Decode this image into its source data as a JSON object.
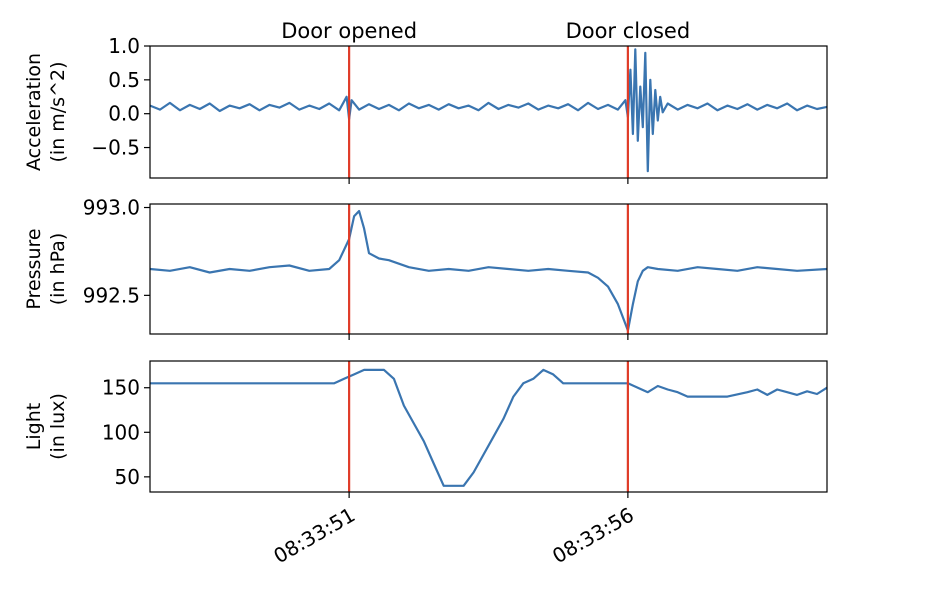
{
  "colors": {
    "series": "#3a75b0",
    "event_line": "#e03c28",
    "axes": "#000000",
    "background": "#ffffff"
  },
  "chart_data": {
    "type": "line",
    "shared_x": true,
    "x_unit": "seconds",
    "x_range": [
      -4,
      9.6
    ],
    "x_ticks": [
      {
        "value": 0,
        "label": "08:33:51"
      },
      {
        "value": 5.6,
        "label": "08:33:56"
      }
    ],
    "events": [
      {
        "x": 0,
        "label": "Door opened"
      },
      {
        "x": 5.6,
        "label": "Door closed"
      }
    ],
    "panels": [
      {
        "ylabel_line1": "Acceleration",
        "ylabel_line2": "(in m/s^2)",
        "ylim": [
          -0.95,
          1.0
        ],
        "yticks": [
          {
            "value": 1.0,
            "label": "1.0"
          },
          {
            "value": 0.5,
            "label": "0.5"
          },
          {
            "value": 0.0,
            "label": "0.0"
          },
          {
            "value": -0.5,
            "label": "−0.5"
          }
        ],
        "series": [
          {
            "x": [
              -4.0,
              -3.8,
              -3.6,
              -3.4,
              -3.2,
              -3.0,
              -2.8,
              -2.6,
              -2.4,
              -2.2,
              -2.0,
              -1.8,
              -1.6,
              -1.4,
              -1.2,
              -1.0,
              -0.8,
              -0.6,
              -0.4,
              -0.2,
              -0.05,
              0.0,
              0.05,
              0.2,
              0.4,
              0.6,
              0.8,
              1.0,
              1.2,
              1.4,
              1.6,
              1.8,
              2.0,
              2.2,
              2.4,
              2.6,
              2.8,
              3.0,
              3.2,
              3.4,
              3.6,
              3.8,
              4.0,
              4.2,
              4.4,
              4.6,
              4.8,
              5.0,
              5.2,
              5.4,
              5.55,
              5.6,
              5.65,
              5.7,
              5.75,
              5.8,
              5.85,
              5.9,
              5.95,
              6.0,
              6.05,
              6.1,
              6.15,
              6.2,
              6.25,
              6.3,
              6.4,
              6.6,
              6.8,
              7.0,
              7.2,
              7.4,
              7.6,
              7.8,
              8.0,
              8.2,
              8.4,
              8.6,
              8.8,
              9.0,
              9.2,
              9.4,
              9.6
            ],
            "values": [
              0.12,
              0.06,
              0.16,
              0.05,
              0.13,
              0.07,
              0.15,
              0.04,
              0.12,
              0.08,
              0.14,
              0.05,
              0.13,
              0.09,
              0.16,
              0.06,
              0.12,
              0.07,
              0.15,
              0.05,
              0.25,
              -0.08,
              0.2,
              0.06,
              0.14,
              0.07,
              0.13,
              0.05,
              0.15,
              0.08,
              0.13,
              0.06,
              0.14,
              0.08,
              0.12,
              0.05,
              0.16,
              0.07,
              0.13,
              0.09,
              0.15,
              0.06,
              0.12,
              0.08,
              0.14,
              0.05,
              0.16,
              0.07,
              0.13,
              0.06,
              0.2,
              -0.05,
              0.65,
              -0.3,
              0.95,
              -0.4,
              0.4,
              -0.2,
              0.9,
              -0.85,
              0.5,
              -0.3,
              0.35,
              -0.1,
              0.25,
              0.02,
              0.15,
              0.06,
              0.13,
              0.08,
              0.15,
              0.05,
              0.12,
              0.07,
              0.14,
              0.06,
              0.13,
              0.08,
              0.15,
              0.05,
              0.12,
              0.07,
              0.1
            ]
          }
        ]
      },
      {
        "ylabel_line1": "Pressure",
        "ylabel_line2": "(in hPa)",
        "ylim": [
          992.28,
          993.02
        ],
        "yticks": [
          {
            "value": 993.0,
            "label": "993.0"
          },
          {
            "value": 992.5,
            "label": "992.5"
          }
        ],
        "series": [
          {
            "x": [
              -4.0,
              -3.6,
              -3.2,
              -2.8,
              -2.4,
              -2.0,
              -1.6,
              -1.2,
              -0.8,
              -0.4,
              -0.2,
              0.0,
              0.1,
              0.2,
              0.3,
              0.4,
              0.6,
              0.8,
              1.2,
              1.6,
              2.0,
              2.4,
              2.8,
              3.2,
              3.6,
              4.0,
              4.4,
              4.8,
              5.0,
              5.2,
              5.4,
              5.6,
              5.7,
              5.8,
              5.9,
              6.0,
              6.2,
              6.6,
              7.0,
              7.4,
              7.8,
              8.2,
              8.6,
              9.0,
              9.6
            ],
            "values": [
              992.65,
              992.64,
              992.66,
              992.63,
              992.65,
              992.64,
              992.66,
              992.67,
              992.64,
              992.65,
              992.7,
              992.82,
              992.95,
              992.98,
              992.88,
              992.74,
              992.71,
              992.7,
              992.66,
              992.64,
              992.65,
              992.64,
              992.66,
              992.65,
              992.64,
              992.65,
              992.64,
              992.63,
              992.6,
              992.55,
              992.45,
              992.3,
              992.45,
              992.58,
              992.64,
              992.66,
              992.65,
              992.64,
              992.66,
              992.65,
              992.64,
              992.66,
              992.65,
              992.64,
              992.65
            ]
          }
        ]
      },
      {
        "ylabel_line1": "Light",
        "ylabel_line2": "(in lux)",
        "ylim": [
          33,
          180
        ],
        "yticks": [
          {
            "value": 150,
            "label": "150"
          },
          {
            "value": 100,
            "label": "100"
          },
          {
            "value": 50,
            "label": "50"
          }
        ],
        "series": [
          {
            "x": [
              -4.0,
              -0.3,
              -0.1,
              0.1,
              0.3,
              0.5,
              0.7,
              0.9,
              1.1,
              1.3,
              1.5,
              1.7,
              1.9,
              2.1,
              2.3,
              2.5,
              2.7,
              2.9,
              3.1,
              3.3,
              3.5,
              3.7,
              3.9,
              4.1,
              4.3,
              4.5,
              4.7,
              4.9,
              5.1,
              5.3,
              5.6,
              5.8,
              6.0,
              6.2,
              6.4,
              6.6,
              6.8,
              7.2,
              7.6,
              8.0,
              8.2,
              8.4,
              8.6,
              8.8,
              9.0,
              9.2,
              9.4,
              9.6
            ],
            "values": [
              155,
              155,
              160,
              165,
              170,
              170,
              170,
              160,
              130,
              110,
              90,
              65,
              40,
              40,
              40,
              55,
              75,
              95,
              115,
              140,
              155,
              160,
              170,
              165,
              155,
              155,
              155,
              155,
              155,
              155,
              155,
              150,
              145,
              152,
              148,
              145,
              140,
              140,
              140,
              145,
              148,
              142,
              148,
              145,
              142,
              146,
              143,
              150
            ]
          }
        ]
      }
    ]
  }
}
